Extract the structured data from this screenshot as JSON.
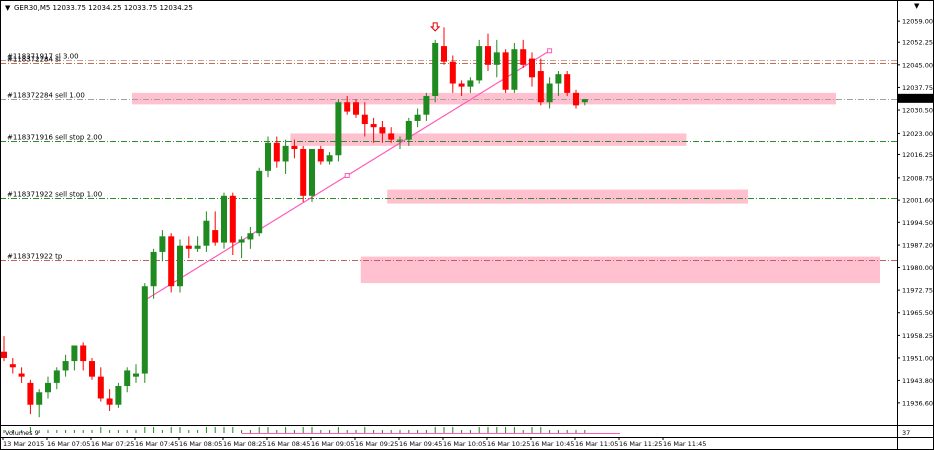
{
  "chart_data": {
    "type": "candlestick",
    "symbol_header": "GER30,M5  12033.75 12034.25 12033.75 12034.25",
    "ylim": [
      11929.5,
      12064.5
    ],
    "y_ticks": [
      "12059.00",
      "12052.25",
      "12045.00",
      "12037.75",
      "12030.50",
      "12023.00",
      "12016.25",
      "12008.75",
      "12001.60",
      "11994.50",
      "11987.20",
      "11980.00",
      "11972.75",
      "11965.50",
      "11958.25",
      "11951.00",
      "11943.80",
      "11936.60"
    ],
    "current_price": "12034.25",
    "x_labels": [
      "13 Mar 2015",
      "16 Mar 07:05",
      "16 Mar 07:25",
      "16 Mar 07:45",
      "16 Mar 08:05",
      "16 Mar 08:25",
      "16 Mar 08:45",
      "16 Mar 09:05",
      "16 Mar 09:25",
      "16 Mar 09:45",
      "16 Mar 10:05",
      "16 Mar 10:25",
      "16 Mar 10:45",
      "16 Mar 11:05",
      "16 Mar 11:25",
      "16 Mar 11:45"
    ],
    "candles": [
      {
        "o": 11953,
        "h": 11958,
        "l": 11950,
        "c": 11951
      },
      {
        "o": 11949,
        "h": 11951,
        "l": 11946,
        "c": 11948
      },
      {
        "o": 11946,
        "h": 11948,
        "l": 11943,
        "c": 11945
      },
      {
        "o": 11943,
        "h": 11944,
        "l": 11933,
        "c": 11936
      },
      {
        "o": 11936,
        "h": 11941,
        "l": 11932,
        "c": 11940
      },
      {
        "o": 11940,
        "h": 11945,
        "l": 11938,
        "c": 11943
      },
      {
        "o": 11943,
        "h": 11948,
        "l": 11941,
        "c": 11947
      },
      {
        "o": 11947,
        "h": 11952,
        "l": 11945,
        "c": 11950
      },
      {
        "o": 11950,
        "h": 11954,
        "l": 11947,
        "c": 11955
      },
      {
        "o": 11955,
        "h": 11956,
        "l": 11947,
        "c": 11950
      },
      {
        "o": 11950,
        "h": 11951,
        "l": 11944,
        "c": 11945
      },
      {
        "o": 11945,
        "h": 11948,
        "l": 11937,
        "c": 11938
      },
      {
        "o": 11938,
        "h": 11941,
        "l": 11934,
        "c": 11936
      },
      {
        "o": 11936,
        "h": 11943,
        "l": 11935,
        "c": 11942
      },
      {
        "o": 11942,
        "h": 11948,
        "l": 11940,
        "c": 11947
      },
      {
        "o": 11945,
        "h": 11949,
        "l": 11943,
        "c": 11946
      },
      {
        "o": 11946,
        "h": 11975,
        "l": 11943,
        "c": 11974
      },
      {
        "o": 11974,
        "h": 11986,
        "l": 11970,
        "c": 11985
      },
      {
        "o": 11985,
        "h": 11992,
        "l": 11982,
        "c": 11990
      },
      {
        "o": 11990,
        "h": 11991,
        "l": 11972,
        "c": 11974
      },
      {
        "o": 11974,
        "h": 11989,
        "l": 11972,
        "c": 11987
      },
      {
        "o": 11987,
        "h": 11990,
        "l": 11983,
        "c": 11986
      },
      {
        "o": 11986,
        "h": 11990,
        "l": 11985,
        "c": 11987
      },
      {
        "o": 11987,
        "h": 11998,
        "l": 11985,
        "c": 11995
      },
      {
        "o": 11992,
        "h": 11998,
        "l": 11987,
        "c": 11988
      },
      {
        "o": 11988,
        "h": 12004,
        "l": 11986,
        "c": 12003
      },
      {
        "o": 12003,
        "h": 12004,
        "l": 11984,
        "c": 11988
      },
      {
        "o": 11988,
        "h": 11990,
        "l": 11983,
        "c": 11989
      },
      {
        "o": 11989,
        "h": 11993,
        "l": 11986,
        "c": 11991
      },
      {
        "o": 11991,
        "h": 12012,
        "l": 11990,
        "c": 12011
      },
      {
        "o": 12011,
        "h": 12022,
        "l": 12009,
        "c": 12020
      },
      {
        "o": 12020,
        "h": 12022,
        "l": 12012,
        "c": 12014
      },
      {
        "o": 12014,
        "h": 12021,
        "l": 12010,
        "c": 12019
      },
      {
        "o": 12019,
        "h": 12021,
        "l": 12015,
        "c": 12018
      },
      {
        "o": 12018,
        "h": 12019,
        "l": 12001,
        "c": 12003
      },
      {
        "o": 12003,
        "h": 12018,
        "l": 12001,
        "c": 12018
      },
      {
        "o": 12018,
        "h": 12019,
        "l": 12013,
        "c": 12014
      },
      {
        "o": 12014,
        "h": 12017,
        "l": 12013,
        "c": 12016
      },
      {
        "o": 12016,
        "h": 12034,
        "l": 12014,
        "c": 12033
      },
      {
        "o": 12033,
        "h": 12035,
        "l": 12029,
        "c": 12030
      },
      {
        "o": 12033,
        "h": 12034,
        "l": 12028,
        "c": 12029
      },
      {
        "o": 12029,
        "h": 12033,
        "l": 12022,
        "c": 12026
      },
      {
        "o": 12026,
        "h": 12028,
        "l": 12020,
        "c": 12025
      },
      {
        "o": 12025,
        "h": 12027,
        "l": 12020,
        "c": 12023
      },
      {
        "o": 12023,
        "h": 12025,
        "l": 12020,
        "c": 12021
      },
      {
        "o": 12021,
        "h": 12022,
        "l": 12018,
        "c": 12021
      },
      {
        "o": 12021,
        "h": 12028,
        "l": 12019,
        "c": 12027
      },
      {
        "o": 12027,
        "h": 12031,
        "l": 12025,
        "c": 12029
      },
      {
        "o": 12029,
        "h": 12036,
        "l": 12027,
        "c": 12035
      },
      {
        "o": 12035,
        "h": 12053,
        "l": 12033,
        "c": 12052
      },
      {
        "o": 12051,
        "h": 12057,
        "l": 12045,
        "c": 12046
      },
      {
        "o": 12046,
        "h": 12048,
        "l": 12036,
        "c": 12039
      },
      {
        "o": 12039,
        "h": 12040,
        "l": 12035,
        "c": 12038
      },
      {
        "o": 12038,
        "h": 12041,
        "l": 12036,
        "c": 12040
      },
      {
        "o": 12040,
        "h": 12053,
        "l": 12039,
        "c": 12051
      },
      {
        "o": 12051,
        "h": 12055,
        "l": 12043,
        "c": 12045
      },
      {
        "o": 12045,
        "h": 12053,
        "l": 12041,
        "c": 12049
      },
      {
        "o": 12049,
        "h": 12050,
        "l": 12036,
        "c": 12037
      },
      {
        "o": 12037,
        "h": 12052,
        "l": 12036,
        "c": 12050
      },
      {
        "o": 12050,
        "h": 12053,
        "l": 12044,
        "c": 12045
      },
      {
        "o": 12047,
        "h": 12049,
        "l": 12038,
        "c": 12041
      },
      {
        "o": 12043,
        "h": 12047,
        "l": 12032,
        "c": 12033
      },
      {
        "o": 12033,
        "h": 12041,
        "l": 12031,
        "c": 12039
      },
      {
        "o": 12039,
        "h": 12043,
        "l": 12035,
        "c": 12042
      },
      {
        "o": 12042,
        "h": 12043,
        "l": 12035,
        "c": 12036
      },
      {
        "o": 12036,
        "h": 12037,
        "l": 12031,
        "c": 12032
      },
      {
        "o": 12033,
        "h": 12034,
        "l": 12032,
        "c": 12034
      }
    ],
    "levels": [
      {
        "label": "#118371917 sl 3.00",
        "price": 12046.5,
        "color": "#c8a0a0",
        "style": "dashdot"
      },
      {
        "label": "#118372284 sl",
        "price": 12045.5,
        "color": "#c07050",
        "style": "dashdot"
      },
      {
        "label": "#118372284 sell 1.00",
        "price": 12033.9,
        "color": "#a0a0a0",
        "style": "dashdot"
      },
      {
        "label": "#118371916 sell stop 2.00",
        "price": 12020.5,
        "color": "#2e8b2e",
        "style": "dashdot"
      },
      {
        "label": "#118371922 sell stop 1.00",
        "price": 12002.3,
        "color": "#2e8b2e",
        "style": "dashdot"
      },
      {
        "label": "#118371922 tp",
        "price": 11982.5,
        "color": "#c06060",
        "style": "dashdot"
      }
    ],
    "zones": [
      {
        "p1": 12036.0,
        "p2": 12032.3,
        "start": 15,
        "end": 95
      },
      {
        "p1": 12023.0,
        "p2": 12019.0,
        "start": 33,
        "end": 78
      },
      {
        "p1": 12005.0,
        "p2": 12000.5,
        "start": 44,
        "end": 85
      },
      {
        "p1": 11983.5,
        "p2": 11975.0,
        "start": 41,
        "end": 100
      }
    ],
    "trendline": {
      "from_candle": 16,
      "from_price": 11969.5,
      "to_candle": 62,
      "to_price": 12049.5
    },
    "arrow_candle": 49,
    "volumes_label": "Volumes 9",
    "volumes_value": "37"
  },
  "colors": {
    "bull": "#1f8a1f",
    "bear": "#ff0000",
    "zone": "#ffb6c8",
    "trend": "#ff5ab8",
    "price_tag_bg": "#000000"
  }
}
